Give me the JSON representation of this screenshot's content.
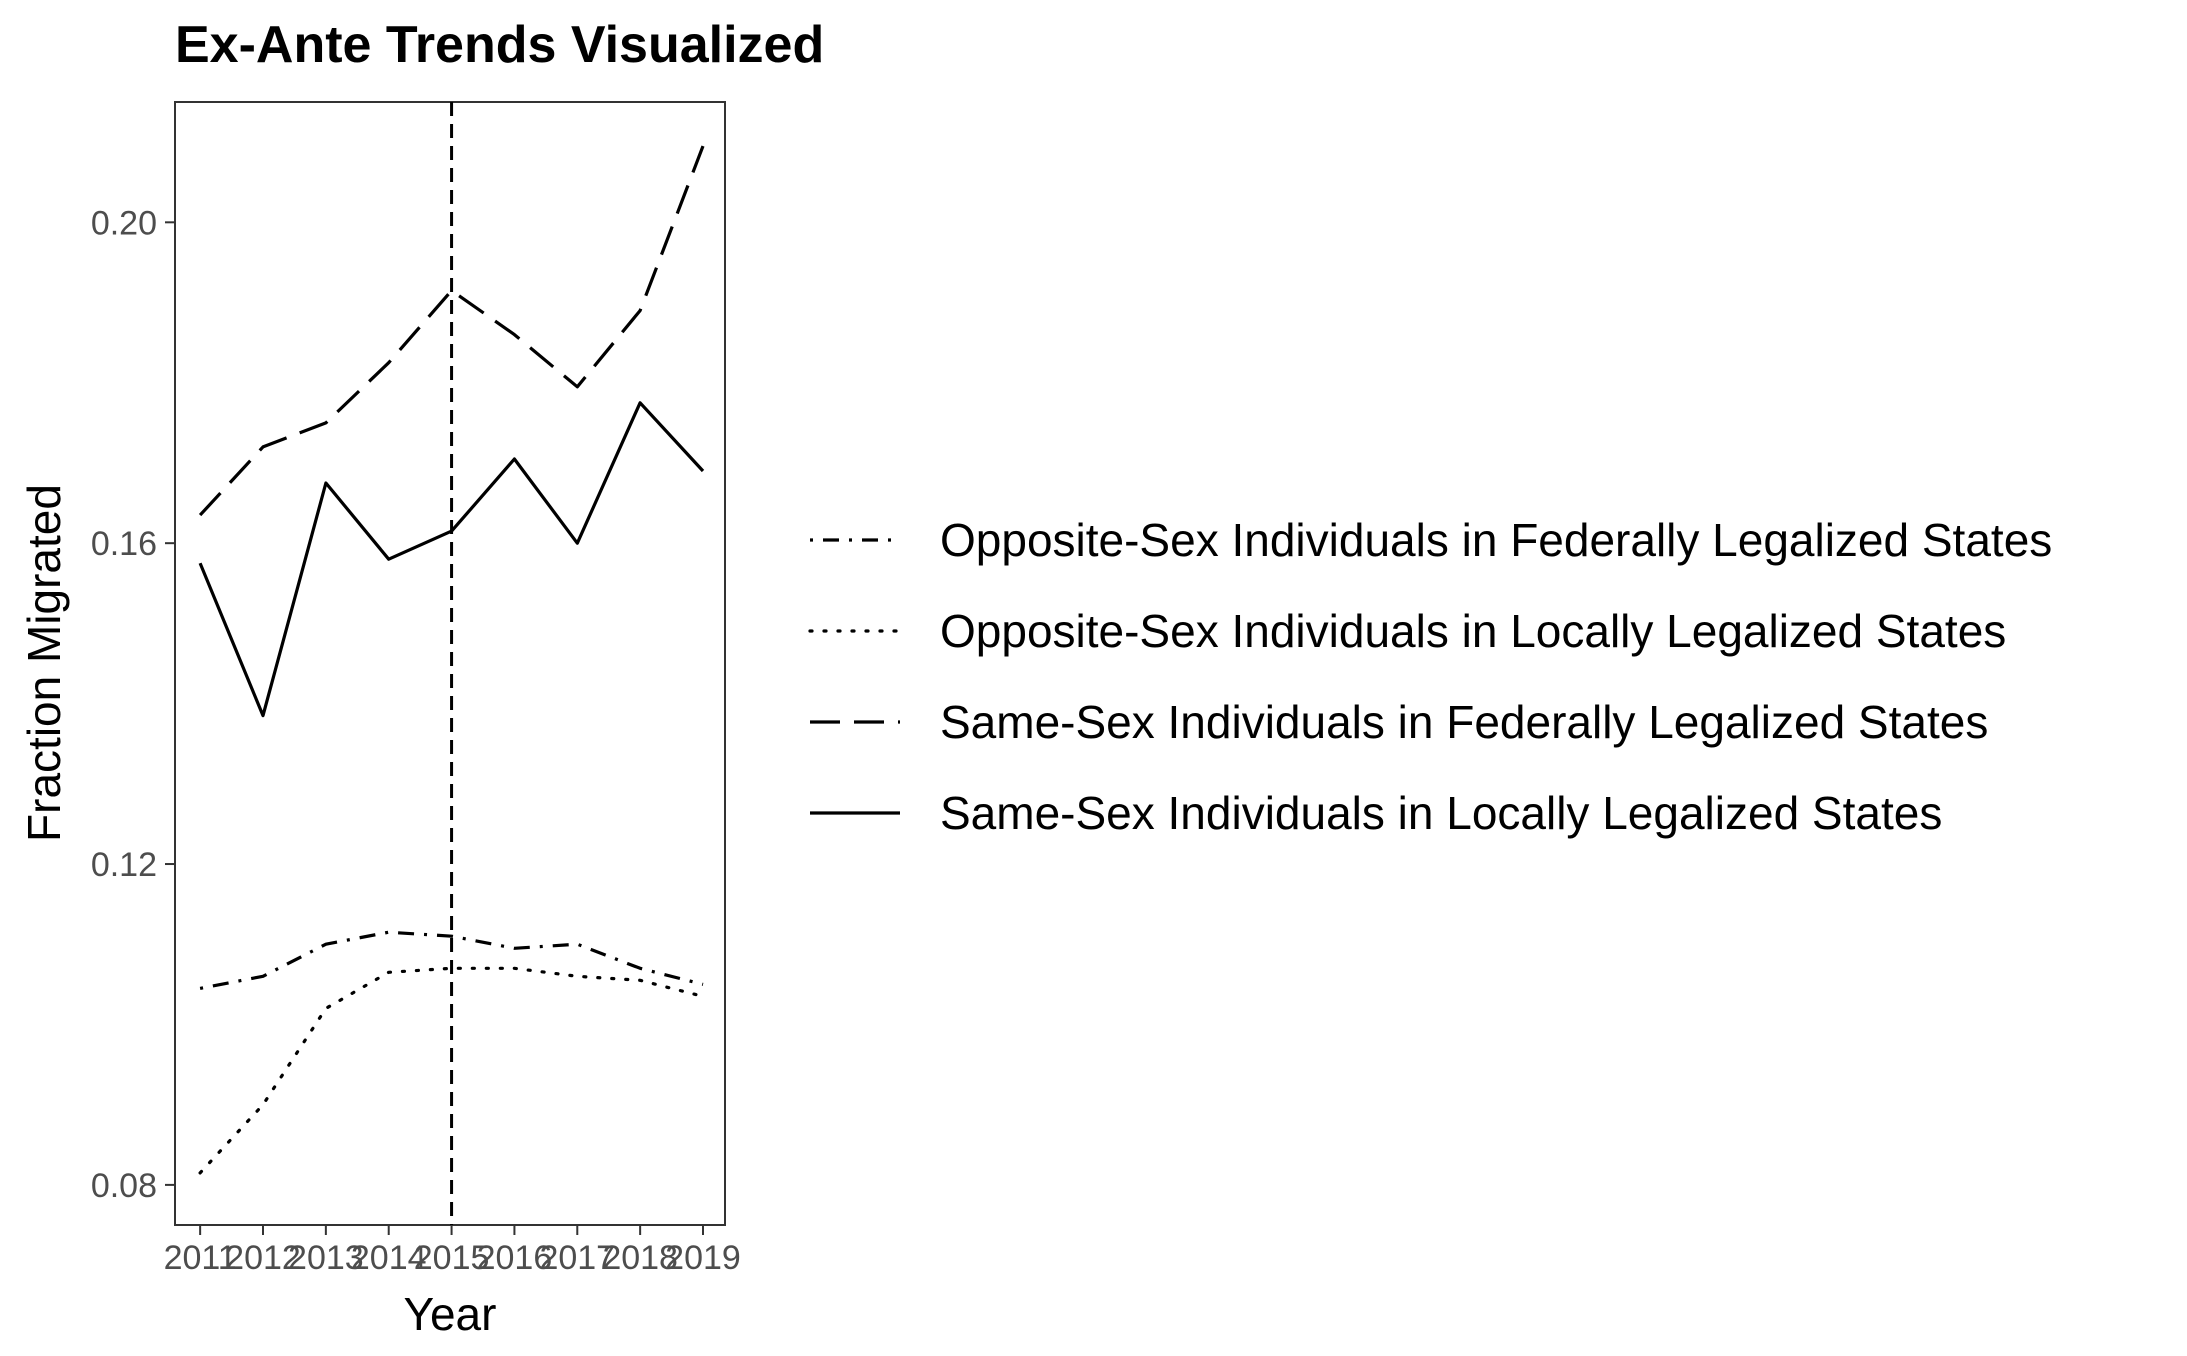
{
  "chart_data": {
    "type": "line",
    "title": "Ex-Ante Trends Visualized",
    "xlabel": "Year",
    "ylabel": "Fraction Migrated",
    "x": [
      2011,
      2012,
      2013,
      2014,
      2015,
      2016,
      2017,
      2018,
      2019
    ],
    "x_tick_labels": [
      "2011",
      "2012",
      "2013",
      "2014",
      "2015",
      "2016",
      "2017",
      "2018",
      "2019"
    ],
    "xlim": [
      2010.6,
      2019.35
    ],
    "ylim": [
      0.075,
      0.215
    ],
    "y_ticks": [
      0.08,
      0.12,
      0.16,
      0.2
    ],
    "y_tick_labels": [
      "0.08",
      "0.12",
      "0.16",
      "0.20"
    ],
    "grid": false,
    "legend_position": "right",
    "vertical_reference_line": {
      "x": 2015,
      "style": "dashed"
    },
    "series": [
      {
        "name": "Opposite-Sex Individuals in Federally Legalized States",
        "linestyle": "dotdash",
        "color": "#000000",
        "values": [
          0.1045,
          0.106,
          0.11,
          0.1115,
          0.111,
          0.1095,
          0.11,
          0.107,
          0.105
        ]
      },
      {
        "name": "Opposite-Sex Individuals in Locally Legalized States",
        "linestyle": "dotted",
        "color": "#000000",
        "values": [
          0.0815,
          0.09,
          0.102,
          0.1065,
          0.107,
          0.107,
          0.106,
          0.1055,
          0.1035
        ]
      },
      {
        "name": "Same-Sex Individuals in Federally Legalized States",
        "linestyle": "longdash",
        "color": "#000000",
        "values": [
          0.1635,
          0.172,
          0.175,
          0.1825,
          0.1915,
          0.186,
          0.1795,
          0.189,
          0.2095
        ]
      },
      {
        "name": "Same-Sex Individuals in Locally Legalized States",
        "linestyle": "solid",
        "color": "#000000",
        "values": [
          0.1575,
          0.1385,
          0.1675,
          0.158,
          0.1615,
          0.1705,
          0.16,
          0.1775,
          0.169
        ]
      }
    ]
  }
}
